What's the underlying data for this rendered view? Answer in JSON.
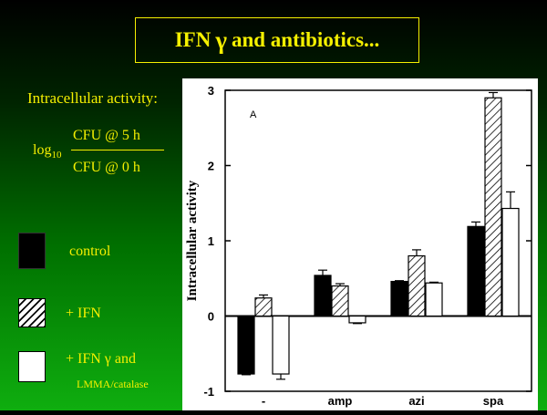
{
  "title": {
    "prefix": "IFN",
    "gamma": "γ",
    "suffix": "and antibiotics..."
  },
  "sidebar": {
    "heading": "Intracellular activity:",
    "log_base": "log",
    "log_sub": "10",
    "numerator": "CFU @ 5 h",
    "denominator": "CFU @ 0 h"
  },
  "legend": {
    "control": "control",
    "ifn": "+ IFN",
    "lmma_line1": "+ IFN γ and",
    "lmma_line2": "LMMA/catalase"
  },
  "colors": {
    "title": "#f5f000",
    "background_top": "#000000",
    "background_bottom": "#0fae0f"
  },
  "chart_data": {
    "type": "bar",
    "panel_label": "A",
    "ylabel": "Intracellular activity",
    "xlabel": "",
    "ylim": [
      -1,
      3
    ],
    "yticks": [
      -1,
      0,
      1,
      2,
      3
    ],
    "categories": [
      "-",
      "amp",
      "azi",
      "spa"
    ],
    "series": [
      {
        "name": "control",
        "fill": "solid-black",
        "values": [
          -0.77,
          0.54,
          0.46,
          1.19
        ],
        "errors": [
          0.01,
          0.07,
          0.01,
          0.06
        ]
      },
      {
        "name": "+ IFN",
        "fill": "hatched",
        "values": [
          0.24,
          0.4,
          0.8,
          2.9
        ],
        "errors": [
          0.04,
          0.03,
          0.08,
          0.07
        ]
      },
      {
        "name": "+ IFN γ and LMMA/catalase",
        "fill": "white",
        "values": [
          -0.77,
          -0.09,
          0.44,
          1.43
        ],
        "errors": [
          0.07,
          0.01,
          0.01,
          0.22
        ]
      }
    ]
  }
}
